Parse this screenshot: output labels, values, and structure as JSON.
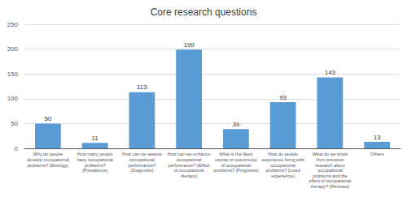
{
  "chart_data": {
    "type": "bar",
    "title": "Core research questions",
    "categories": [
      "Why do people\ndevelop occupational\nproblems? (Etiology)",
      "How many people\nhave occupational\nproblems?\n(Prevalence)",
      "How can we assess\noccupational\nperformance?\n(Diagnosis)",
      "How can we enhance\noccupational\nperformance? (Effect\nof occupational\ntherapy)",
      "What is the likely\ncourse or outcome(s)\nof occupational\nproblems? (Prognosis)",
      "How do people\nexperience living with\noccupational\nproblems? (Lived\nexperience)",
      "What do we know\nfrom previous\nresearch about\noccupational\nproblems and the\neffect of occupational\ntherapy? (Reviews)",
      "Others"
    ],
    "values": [
      50,
      11,
      113,
      199,
      39,
      93,
      143,
      13
    ],
    "color": "#5b9bd5",
    "ylim": [
      0,
      250
    ],
    "yticks": [
      0,
      50,
      100,
      150,
      200,
      250
    ],
    "grid": true,
    "data_labels": true
  }
}
